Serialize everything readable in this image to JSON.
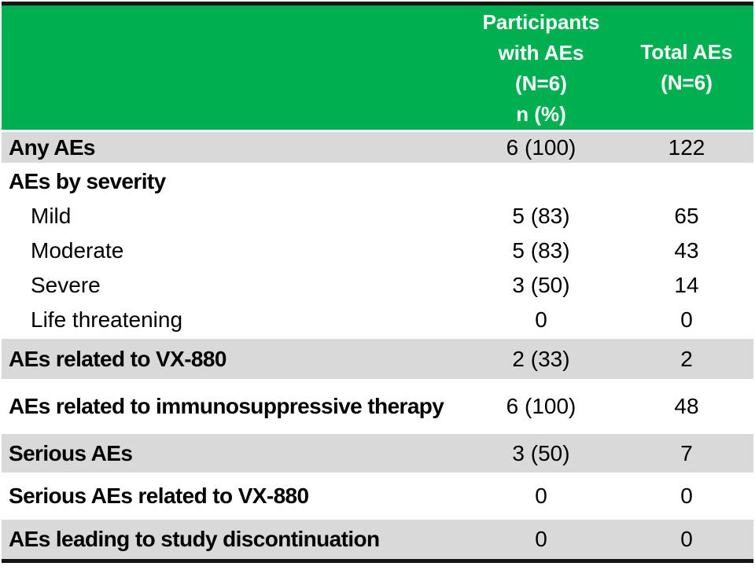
{
  "colors": {
    "header_bg": "#00B050",
    "header_text": "#FFFFFF",
    "band_bg": "#D9D9D9",
    "row_bg": "#FFFFFF",
    "text": "#000000",
    "border": "#141414"
  },
  "header": {
    "col2_lines": [
      "Participants",
      "with AEs",
      "(N=6)",
      "n (%)"
    ],
    "col3_lines": [
      "Total AEs",
      "(N=6)"
    ]
  },
  "rows": [
    {
      "label": "Any AEs",
      "participants": "6 (100)",
      "total": "122",
      "band": true,
      "bold": true,
      "indent": false
    },
    {
      "label": "AEs by severity",
      "participants": "",
      "total": "",
      "band": false,
      "bold": true,
      "indent": false
    },
    {
      "label": "Mild",
      "participants": "5 (83)",
      "total": "65",
      "band": false,
      "bold": false,
      "indent": true
    },
    {
      "label": "Moderate",
      "participants": "5 (83)",
      "total": "43",
      "band": false,
      "bold": false,
      "indent": true
    },
    {
      "label": "Severe",
      "participants": "3 (50)",
      "total": "14",
      "band": false,
      "bold": false,
      "indent": true
    },
    {
      "label": "Life threatening",
      "participants": "0",
      "total": "0",
      "band": false,
      "bold": false,
      "indent": true
    },
    {
      "label": "AEs related to VX-880",
      "participants": "2 (33)",
      "total": "2",
      "band": true,
      "bold": true,
      "indent": false
    },
    {
      "label": "AEs related to immunosuppressive therapy",
      "participants": "6 (100)",
      "total": "48",
      "band": false,
      "bold": true,
      "indent": false
    },
    {
      "label": "Serious AEs",
      "participants": "3 (50)",
      "total": "7",
      "band": true,
      "bold": true,
      "indent": false
    },
    {
      "label": "Serious AEs related to VX-880",
      "participants": "0",
      "total": "0",
      "band": false,
      "bold": true,
      "indent": false
    },
    {
      "label": "AEs leading to study discontinuation",
      "participants": "0",
      "total": "0",
      "band": true,
      "bold": true,
      "indent": false
    }
  ],
  "chart_data": {
    "type": "table",
    "columns": [
      "",
      "Participants with AEs (N=6) n (%)",
      "Total AEs (N=6)"
    ],
    "rows": [
      [
        "Any AEs",
        "6 (100)",
        "122"
      ],
      [
        "AEs by severity",
        "",
        ""
      ],
      [
        "Mild",
        "5 (83)",
        "65"
      ],
      [
        "Moderate",
        "5 (83)",
        "43"
      ],
      [
        "Severe",
        "3 (50)",
        "14"
      ],
      [
        "Life threatening",
        "0",
        "0"
      ],
      [
        "AEs related to VX-880",
        "2 (33)",
        "2"
      ],
      [
        "AEs related to immunosuppressive therapy",
        "6 (100)",
        "48"
      ],
      [
        "Serious AEs",
        "3 (50)",
        "7"
      ],
      [
        "Serious AEs related to VX-880",
        "0",
        "0"
      ],
      [
        "AEs leading to study discontinuation",
        "0",
        "0"
      ]
    ]
  }
}
